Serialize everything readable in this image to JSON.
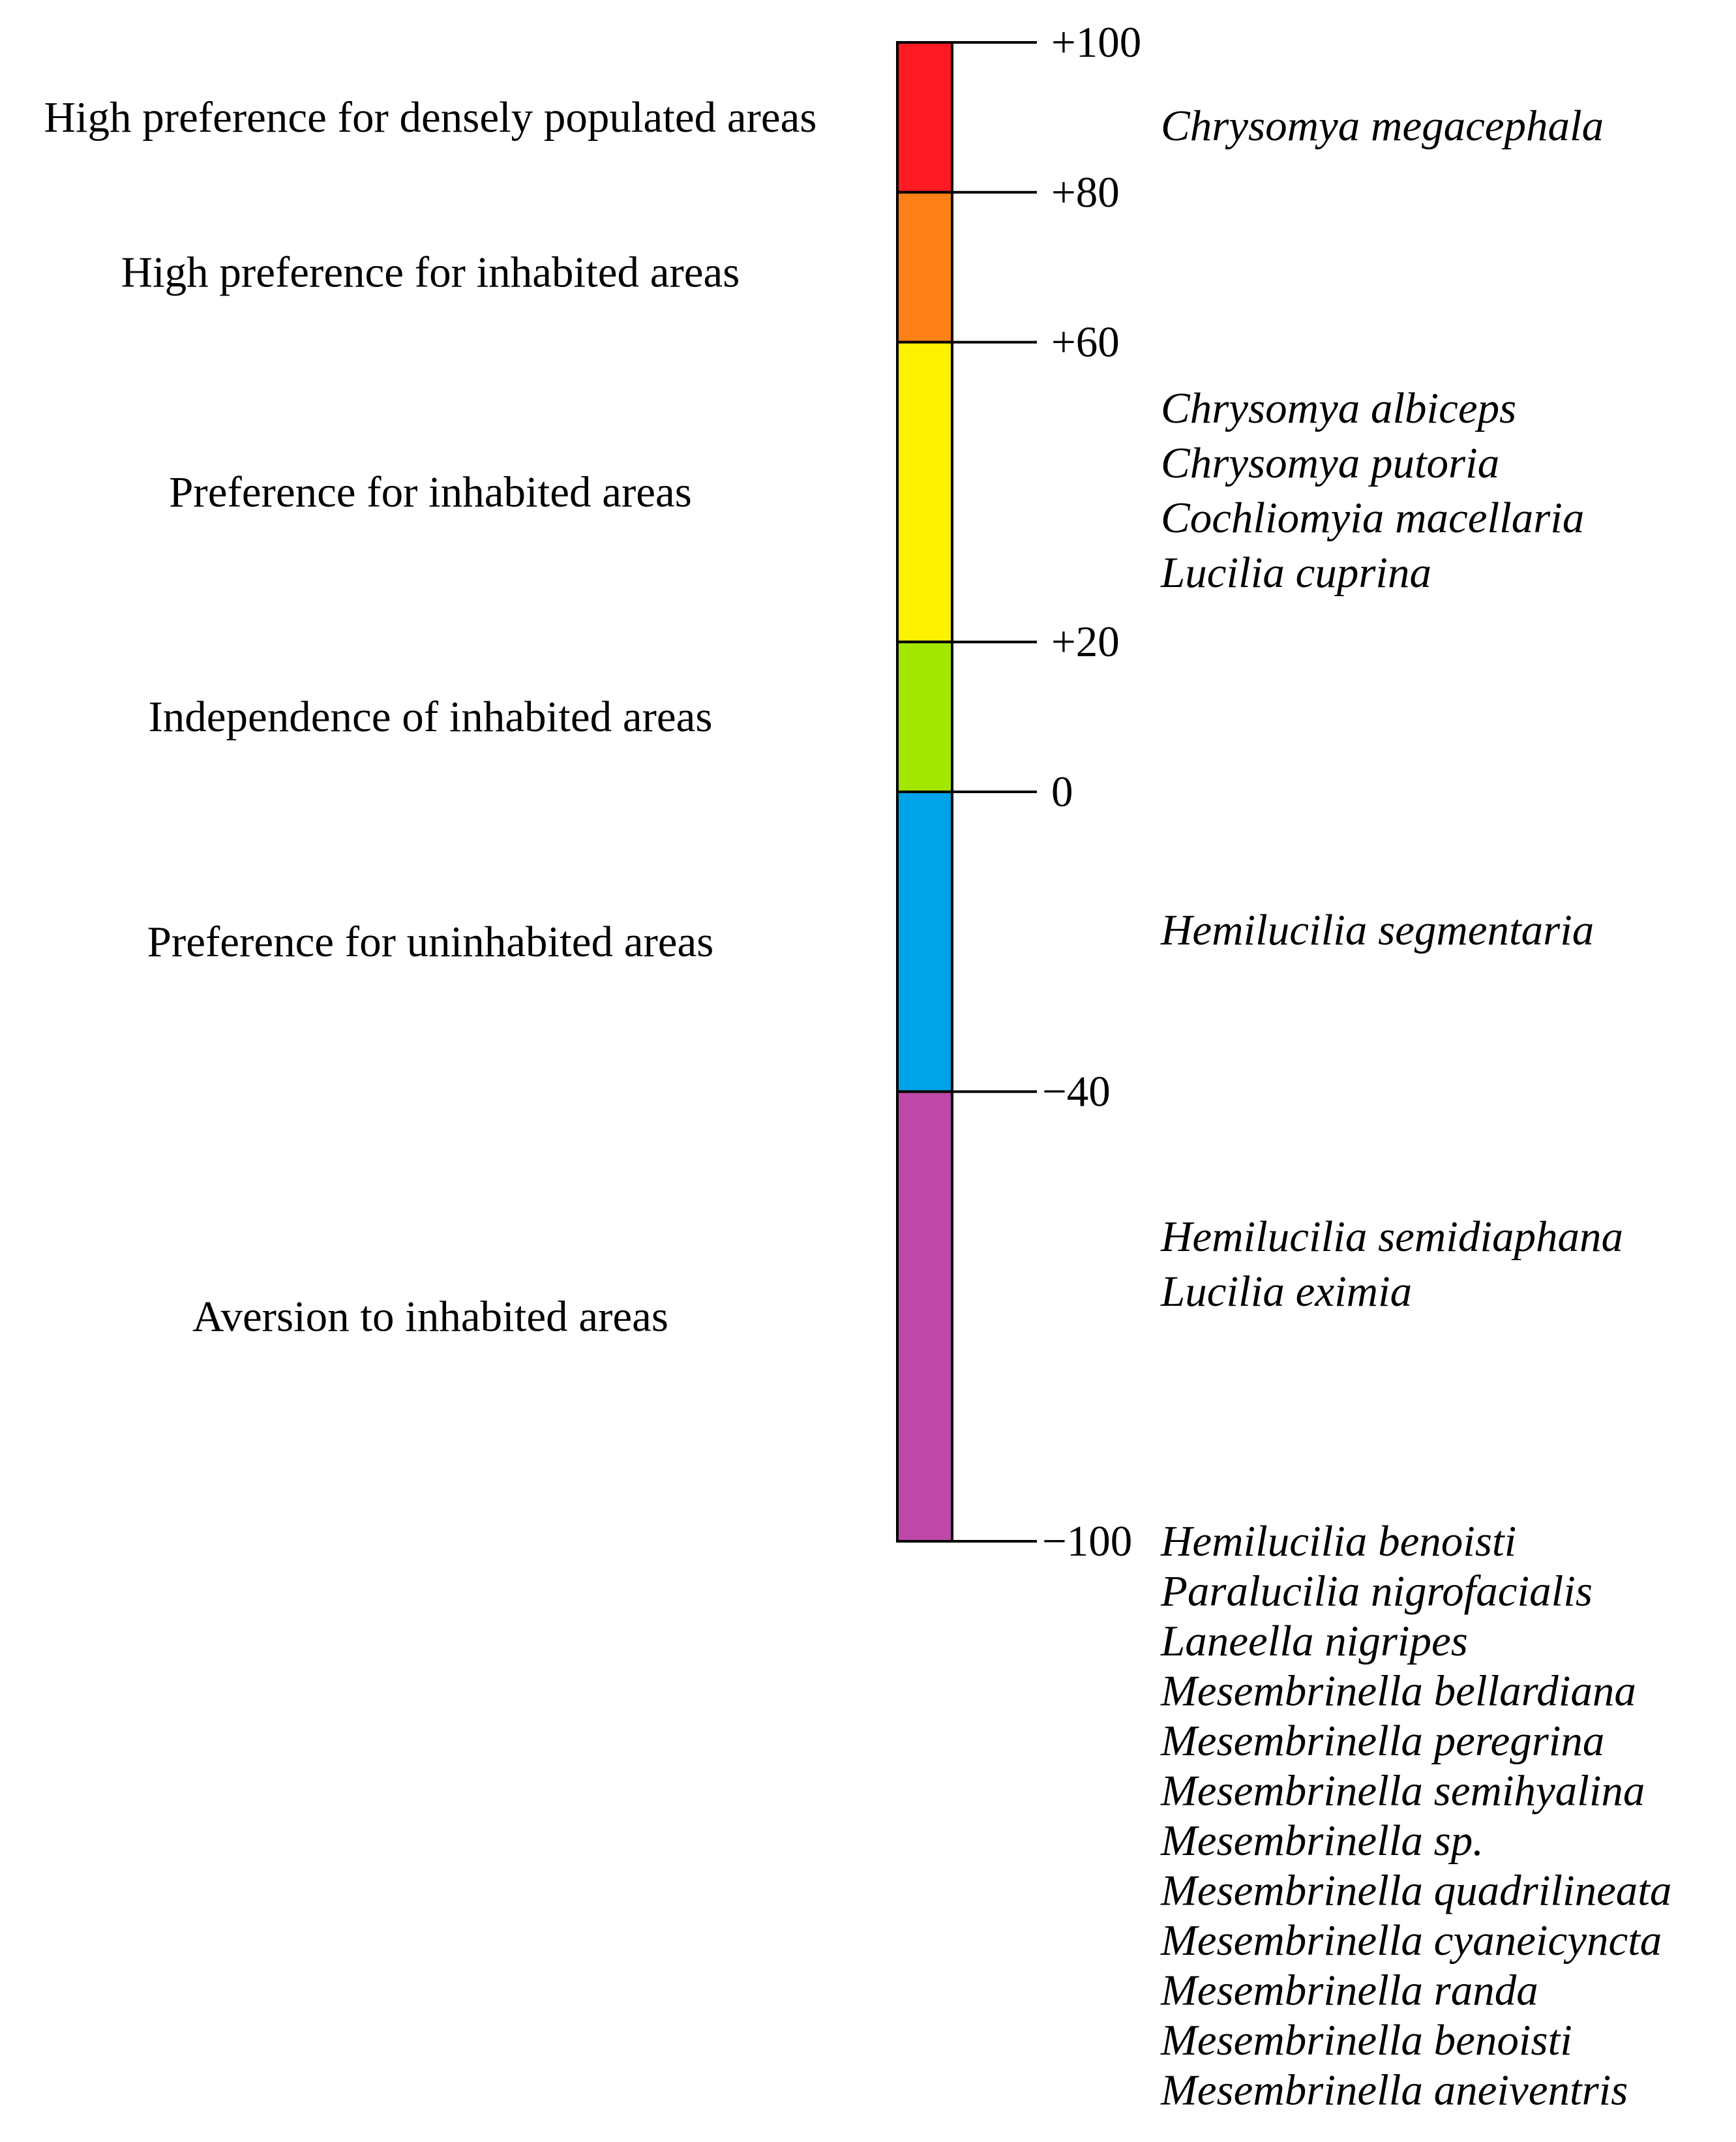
{
  "scale": {
    "ticks": [
      {
        "value": 100,
        "label": "+100"
      },
      {
        "value": 80,
        "label": "+80"
      },
      {
        "value": 60,
        "label": "+60"
      },
      {
        "value": 20,
        "label": "+20"
      },
      {
        "value": 0,
        "label": "0"
      },
      {
        "value": -40,
        "label": "−40"
      },
      {
        "value": -100,
        "label": "−100"
      }
    ],
    "bands": [
      {
        "from": 80,
        "to": 100,
        "color": "#ff1a24",
        "category": "High preference for densely populated areas"
      },
      {
        "from": 60,
        "to": 80,
        "color": "#ff8016",
        "category": "High preference for inhabited areas"
      },
      {
        "from": 20,
        "to": 60,
        "color": "#fff200",
        "category": "Preference for inhabited areas"
      },
      {
        "from": 0,
        "to": 20,
        "color": "#a3e600",
        "category": "Independence of inhabited areas"
      },
      {
        "from": -40,
        "to": 0,
        "color": "#00a2e8",
        "category": "Preference for uninhabited areas"
      },
      {
        "from": -100,
        "to": -40,
        "color": "#bd48a8",
        "category": "Aversion to inhabited areas"
      }
    ]
  },
  "species_groups": [
    {
      "species": [
        "Chrysomya megacephala"
      ]
    },
    {
      "species": [
        "Chrysomya albiceps",
        "Chrysomya putoria",
        "Cochliomyia macellaria",
        "Lucilia cuprina"
      ]
    },
    {
      "species": [
        "Hemilucilia segmentaria"
      ]
    },
    {
      "species": [
        "Hemilucilia semidiaphana",
        "Lucilia eximia"
      ]
    },
    {
      "species": [
        "Hemilucilia benoisti",
        "Paralucilia nigrofacialis",
        "Laneella nigripes",
        "Mesembrinella bellardiana",
        "Mesembrinella peregrina",
        "Mesembrinella semihyalina",
        "Mesembrinella sp.",
        "Mesembrinella quadrilineata",
        "Mesembrinella cyaneicyncta",
        "Mesembrinella randa",
        "Mesembrinella benoisti",
        "Mesembrinella aneiventris"
      ]
    }
  ]
}
